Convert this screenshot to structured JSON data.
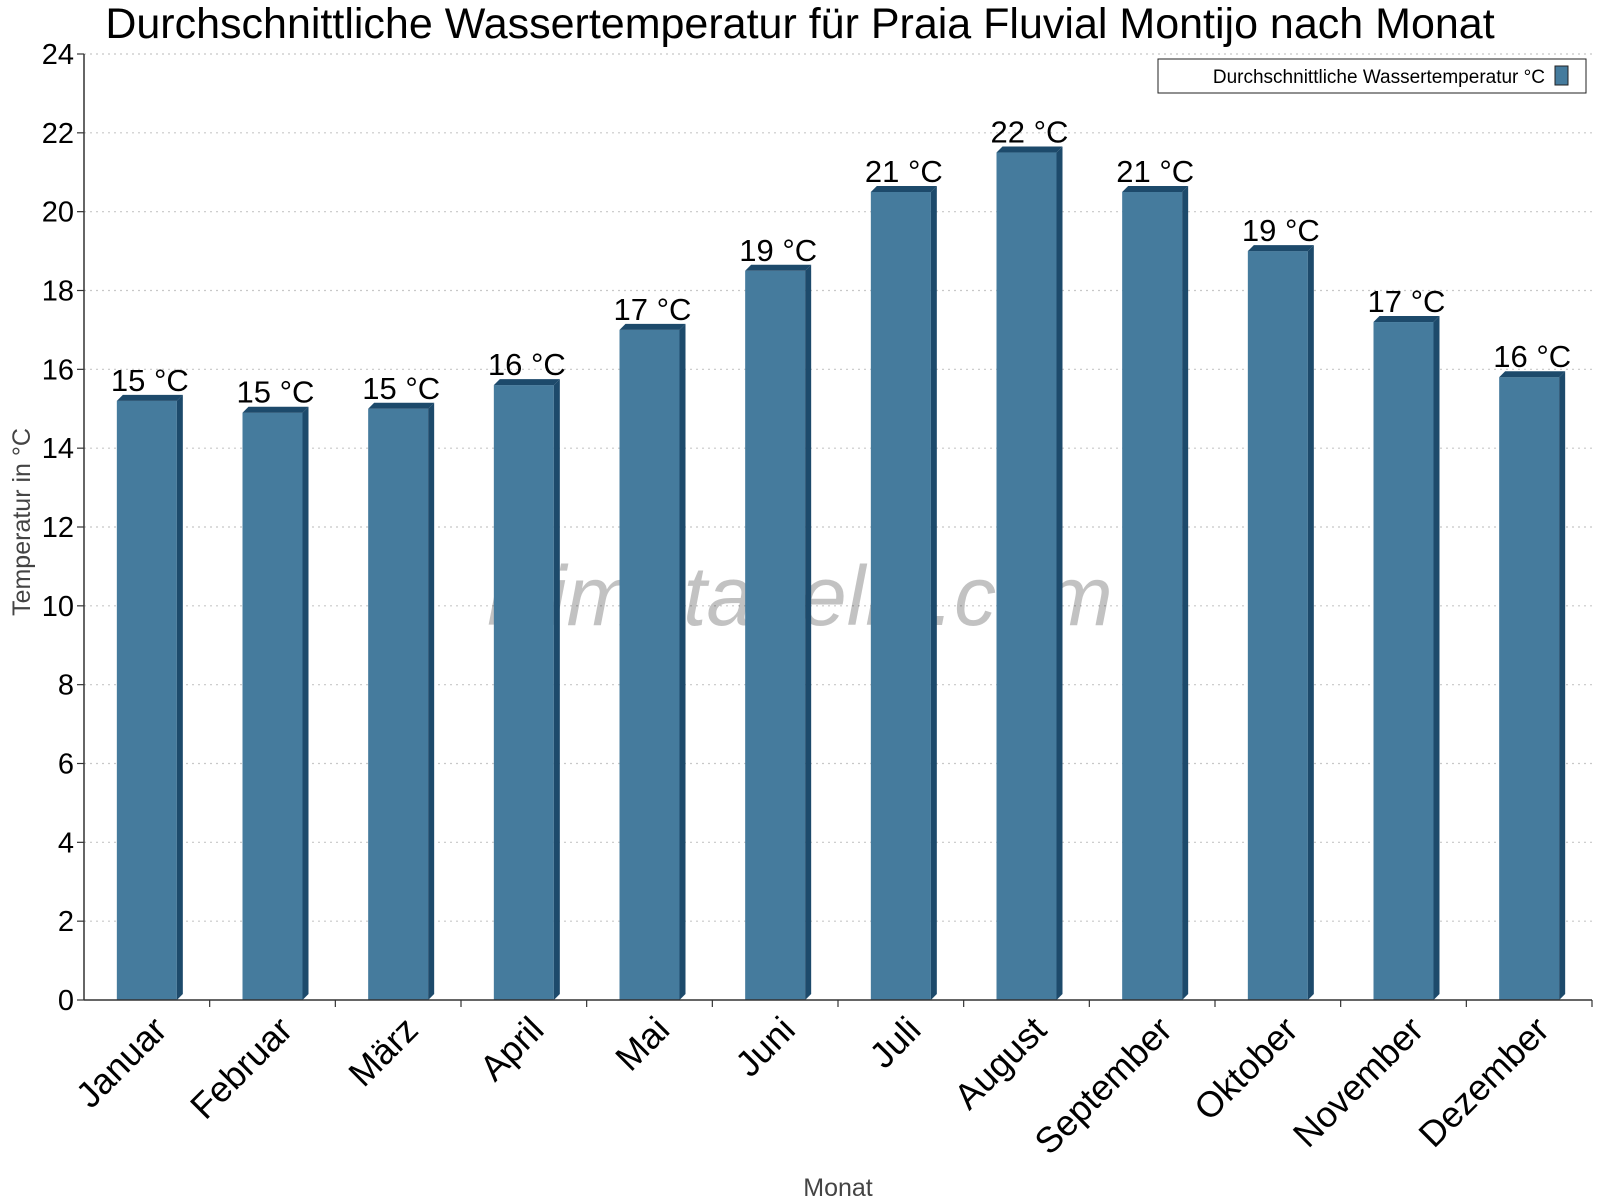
{
  "chart_data": {
    "type": "bar",
    "title": "Durchschnittliche Wassertemperatur für Praia Fluvial Montijo nach Monat",
    "xlabel": "Monat",
    "ylabel": "Temperatur in °C",
    "categories": [
      "Januar",
      "Februar",
      "März",
      "April",
      "Mai",
      "Juni",
      "Juli",
      "August",
      "September",
      "Oktober",
      "November",
      "Dezember"
    ],
    "series": [
      {
        "name": "Durchschnittliche Wassertemperatur °C",
        "values": [
          15.2,
          14.9,
          15.0,
          15.6,
          17.0,
          18.5,
          20.5,
          21.5,
          20.5,
          19.0,
          17.2,
          15.8
        ],
        "labels": [
          "15 °C",
          "15 °C",
          "15 °C",
          "16 °C",
          "17 °C",
          "19 °C",
          "21 °C",
          "22 °C",
          "21 °C",
          "19 °C",
          "17 °C",
          "16 °C"
        ]
      }
    ],
    "ylim": [
      0,
      24
    ],
    "yticks": [
      "0",
      "2",
      "4",
      "6",
      "8",
      "10",
      "12",
      "14",
      "16",
      "18",
      "20",
      "22",
      "24"
    ],
    "grid": true,
    "legend_position": "top-right",
    "bar_color": "#457b9d",
    "bar_shade_color": "#1d4a6b"
  },
  "watermark": "klimatabelle.com"
}
